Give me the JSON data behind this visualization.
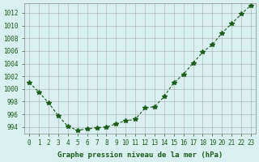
{
  "x": [
    0,
    1,
    2,
    3,
    4,
    5,
    6,
    7,
    8,
    9,
    10,
    11,
    12,
    13,
    14,
    15,
    16,
    17,
    18,
    19,
    20,
    21,
    22,
    23
  ],
  "y": [
    1001.0,
    999.5,
    997.8,
    995.8,
    994.1,
    993.5,
    993.7,
    993.9,
    994.0,
    994.5,
    995.0,
    995.2,
    997.0,
    997.2,
    998.8,
    1001.0,
    1002.3,
    1004.1,
    1005.8,
    1007.0,
    1008.8,
    1010.3,
    1011.8,
    1013.2
  ],
  "line_color": "#1a5c1a",
  "marker": "*",
  "marker_size": 4,
  "background_color": "#d8f0f0",
  "grid_color": "#aaaaaa",
  "xlabel": "Graphe pression niveau de la mer (hPa)",
  "xlabel_color": "#1a5c1a",
  "ylabel_color": "#1a5c1a",
  "tick_color": "#1a5c1a",
  "ylim": [
    993,
    1013.5
  ],
  "xlim": [
    -0.5,
    23.5
  ],
  "yticks": [
    994,
    996,
    998,
    1000,
    1002,
    1004,
    1006,
    1008,
    1010,
    1012
  ],
  "xtick_labels": [
    "0",
    "1",
    "2",
    "3",
    "4",
    "5",
    "6",
    "7",
    "8",
    "9",
    "10",
    "11",
    "12",
    "13",
    "14",
    "15",
    "16",
    "17",
    "18",
    "19",
    "20",
    "21",
    "22",
    "23"
  ]
}
